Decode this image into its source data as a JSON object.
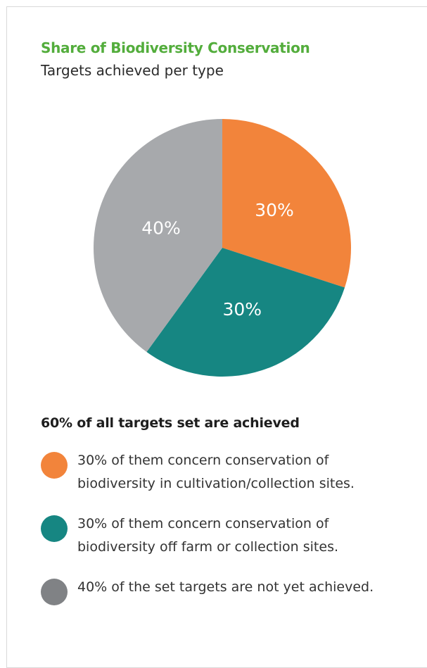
{
  "chart_data": {
    "type": "pie",
    "title": "Share of Biodiversity Conservation",
    "subtitle": "Targets achieved per type",
    "slices": [
      {
        "label": "30%",
        "value": 30,
        "color": "#f2843b"
      },
      {
        "label": "30%",
        "value": 30,
        "color": "#168682"
      },
      {
        "label": "40%",
        "value": 40,
        "color": "#a7a9ac"
      }
    ],
    "headline": "60% of all targets set are achieved",
    "legend": [
      {
        "color": "#f2843b",
        "lines": [
          "30% of them concern conservation of",
          "biodiversity in cultivation/collection sites."
        ]
      },
      {
        "color": "#168682",
        "lines": [
          "30% of them concern conservation of",
          "biodiversity off farm or collection sites."
        ]
      },
      {
        "color": "#808285",
        "lines": [
          "40% of the set targets are not yet achieved."
        ]
      }
    ]
  }
}
